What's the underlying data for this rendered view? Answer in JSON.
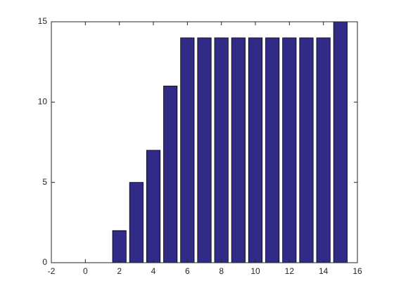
{
  "chart_data": {
    "type": "bar",
    "x": [
      2,
      3,
      4,
      5,
      6,
      7,
      8,
      9,
      10,
      11,
      12,
      13,
      14,
      15
    ],
    "values": [
      2,
      5,
      7,
      11,
      14,
      14,
      14,
      14,
      14,
      14,
      14,
      14,
      14,
      15
    ],
    "color": "#312b87",
    "xlim": [
      -2,
      16
    ],
    "xticks": [
      -2,
      0,
      2,
      4,
      6,
      8,
      10,
      12,
      14,
      16
    ],
    "ylim": [
      0,
      15
    ],
    "yticks": [
      0,
      5,
      10,
      15
    ],
    "grid": false
  }
}
